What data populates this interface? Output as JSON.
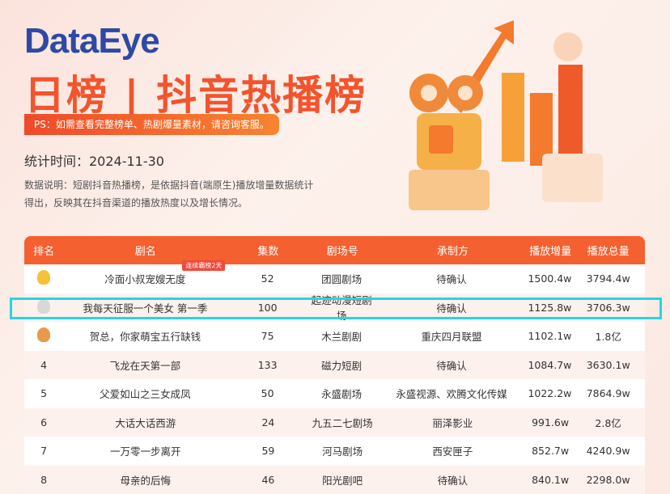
{
  "header": {
    "logo": "DataEye",
    "title": "日榜 | 抖音热播榜",
    "ps": "PS：如需查看完整榜单、热剧爆量素材，请咨询客服。",
    "date": "统计时间：2024-11-30",
    "desc": "数据说明：短剧抖音热播榜，是依据抖音(端原生)播放增量数据统计得出，反映其在抖音渠道的播放热度以及增长情况。"
  },
  "colors": {
    "accent": "#f4602f",
    "logo": "#2d4aa3",
    "highlight": "#2ad3e0"
  },
  "table": {
    "columns": [
      "排名",
      "剧名",
      "集数",
      "剧场号",
      "承制方",
      "播放增量",
      "播放总量"
    ],
    "rows": [
      {
        "rank": "1",
        "medal": "gold",
        "name": "冷面小叔宠嫂无度",
        "badge": "连续霸榜2天",
        "episodes": "52",
        "theater": "团圆剧场",
        "producer": "待确认",
        "increase": "1500.4w",
        "total": "3794.4w"
      },
      {
        "rank": "2",
        "medal": "silver",
        "name": "我每天征服一个美女  第一季",
        "episodes": "100",
        "theater": "起迹动漫短剧场",
        "producer": "待确认",
        "increase": "1125.8w",
        "total": "3706.3w"
      },
      {
        "rank": "3",
        "medal": "bronze",
        "name": "贺总，你家萌宝五行缺钱",
        "episodes": "75",
        "theater": "木兰剧剧",
        "producer": "重庆四月联盟",
        "increase": "1102.1w",
        "total": "1.8亿"
      },
      {
        "rank": "4",
        "name": "飞龙在天第一部",
        "episodes": "133",
        "theater": "磁力短剧",
        "producer": "待确认",
        "increase": "1084.7w",
        "total": "3630.1w"
      },
      {
        "rank": "5",
        "name": "父爱如山之三女成凤",
        "episodes": "50",
        "theater": "永盛剧场",
        "producer": "永盛视源、欢腾文化传媒",
        "increase": "1022.2w",
        "total": "7864.9w"
      },
      {
        "rank": "6",
        "name": "大话大话西游",
        "episodes": "24",
        "theater": "九五二七剧场",
        "producer": "丽泽影业",
        "increase": "991.6w",
        "total": "2.8亿"
      },
      {
        "rank": "7",
        "name": "一万零一步离开",
        "episodes": "59",
        "theater": "河马剧场",
        "producer": "西安匣子",
        "increase": "852.7w",
        "total": "4240.9w"
      },
      {
        "rank": "8",
        "name": "母亲的后悔",
        "episodes": "46",
        "theater": "阳光剧吧",
        "producer": "待确认",
        "increase": "840.1w",
        "total": "2298.0w"
      }
    ]
  }
}
